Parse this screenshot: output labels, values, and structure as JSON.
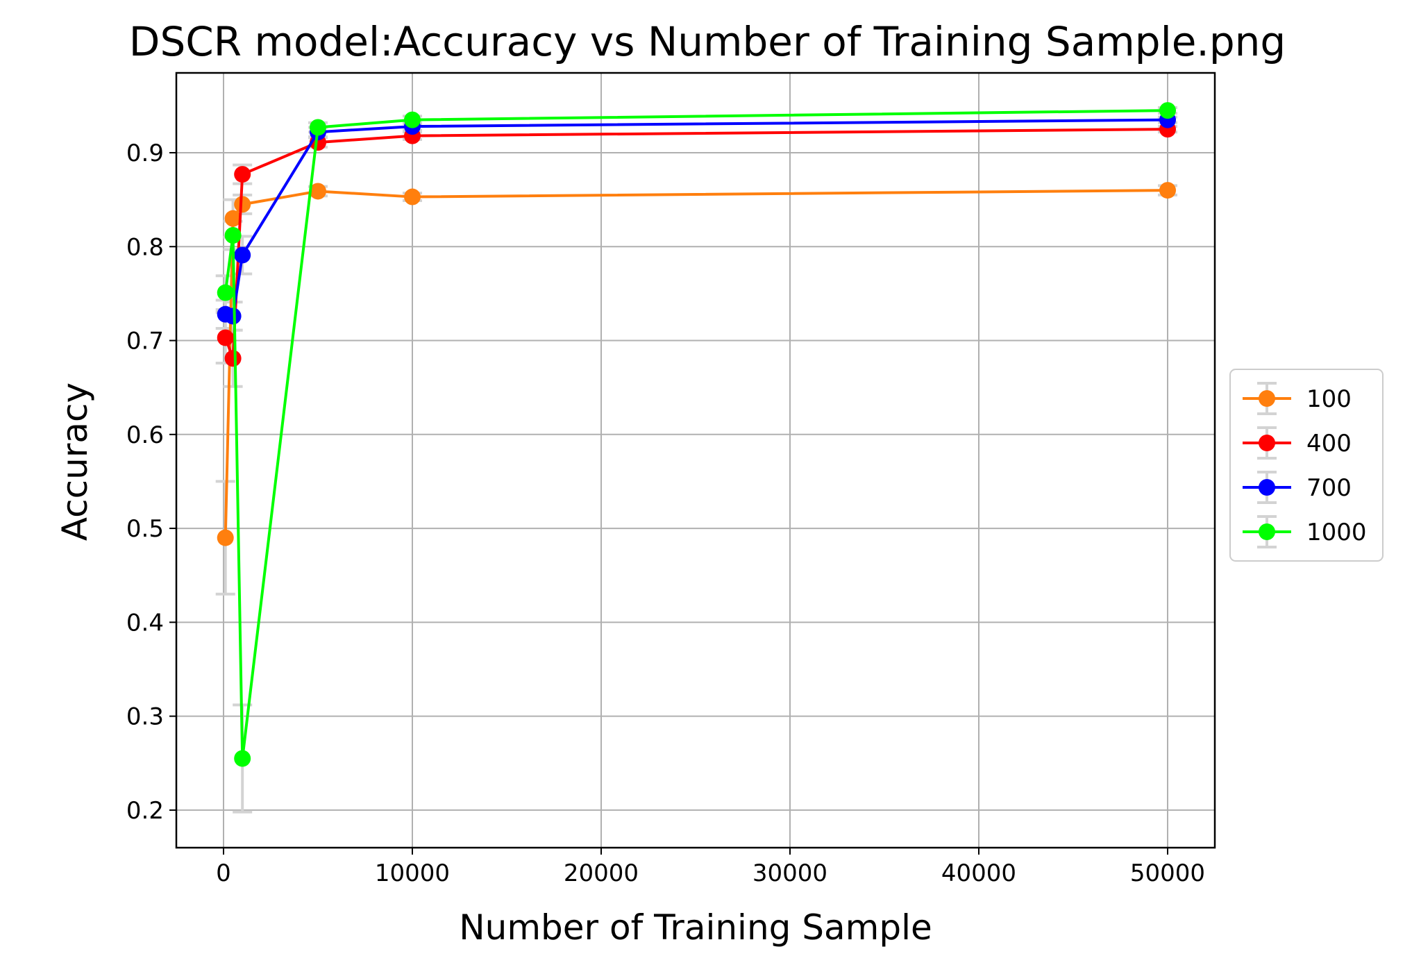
{
  "chart_data": {
    "type": "line",
    "title": "DSCR model:Accuracy vs Number of Training Sample.png",
    "xlabel": "Number of Training Sample",
    "ylabel": "Accuracy",
    "xlim": [
      -2500,
      52500
    ],
    "ylim": [
      0.16,
      0.985
    ],
    "x_ticks": [
      0,
      10000,
      20000,
      30000,
      40000,
      50000
    ],
    "x_tick_labels": [
      "0",
      "10000",
      "20000",
      "30000",
      "40000",
      "50000"
    ],
    "y_ticks": [
      0.2,
      0.3,
      0.4,
      0.5,
      0.6,
      0.7,
      0.8,
      0.9
    ],
    "y_tick_labels": [
      "0.2",
      "0.3",
      "0.4",
      "0.5",
      "0.6",
      "0.7",
      "0.8",
      "0.9"
    ],
    "grid": true,
    "legend_position": "center-right, outside plot",
    "errorbar_color": "#d3d3d3",
    "x": [
      100,
      500,
      1000,
      5000,
      10000,
      50000
    ],
    "series": [
      {
        "name": "100",
        "color": "#ff7f0e",
        "values": [
          0.49,
          0.83,
          0.845,
          0.859,
          0.853,
          0.86
        ],
        "errors": [
          0.06,
          0.02,
          0.01,
          0.005,
          0.004,
          0.005
        ]
      },
      {
        "name": "400",
        "color": "#ff0000",
        "values": [
          0.703,
          0.681,
          0.877,
          0.911,
          0.918,
          0.925
        ],
        "errors": [
          0.027,
          0.03,
          0.01,
          0.005,
          0.004,
          0.003
        ]
      },
      {
        "name": "700",
        "color": "#0000ff",
        "values": [
          0.728,
          0.726,
          0.791,
          0.922,
          0.928,
          0.935
        ],
        "errors": [
          0.015,
          0.015,
          0.02,
          0.005,
          0.004,
          0.003
        ]
      },
      {
        "name": "1000",
        "color": "#00ff00",
        "values": [
          0.751,
          0.812,
          0.255,
          0.927,
          0.935,
          0.945
        ],
        "errors": [
          0.018,
          0.015,
          0.057,
          0.005,
          0.004,
          0.003
        ]
      }
    ]
  }
}
